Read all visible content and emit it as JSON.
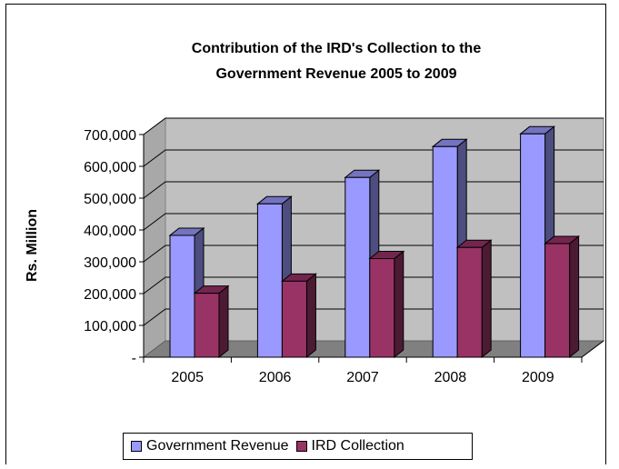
{
  "chart_data": {
    "type": "bar",
    "title_lines": [
      "Contribution of the IRD's Collection to the",
      "Government Revenue 2005 to 2009"
    ],
    "xlabel": "",
    "ylabel": "Rs. Million",
    "categories": [
      "2005",
      "2006",
      "2007",
      "2008",
      "2009"
    ],
    "ylim": [
      0,
      700000
    ],
    "yticks": [
      0,
      100000,
      200000,
      300000,
      400000,
      500000,
      600000,
      700000
    ],
    "ytick_labels": [
      "-",
      "100,000",
      "200,000",
      "300,000",
      "400,000",
      "500,000",
      "600,000",
      "700,000"
    ],
    "three_d": true,
    "grid": true,
    "legend_position": "bottom",
    "series": [
      {
        "name": "Government Revenue",
        "color": "#9999ff",
        "values": [
          383000,
          482000,
          565000,
          662000,
          702000
        ]
      },
      {
        "name": "IRD Collection",
        "color": "#993366",
        "values": [
          201000,
          239000,
          310000,
          345000,
          357000
        ]
      }
    ]
  }
}
